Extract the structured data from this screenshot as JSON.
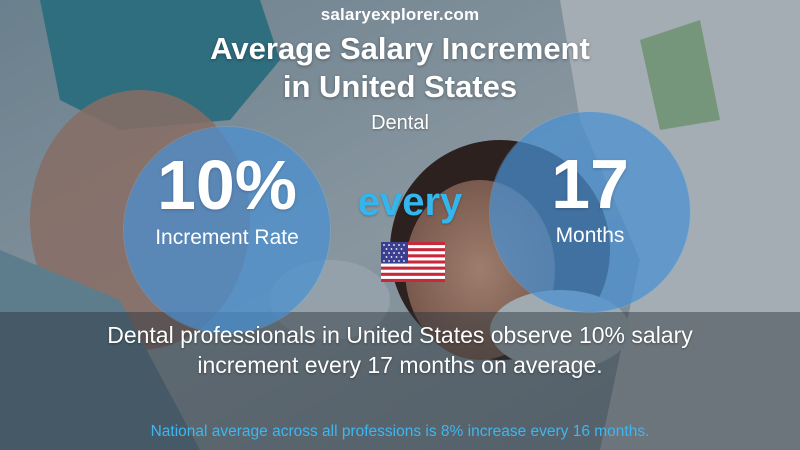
{
  "brand": {
    "part1": "salary",
    "part2": "explorer",
    "part3": ".com"
  },
  "title": {
    "line1": "Average Salary Increment",
    "line2": "in United States"
  },
  "subtitle": "Dental",
  "left_stat": {
    "value": "10%",
    "label": "Increment Rate"
  },
  "connector": "every",
  "right_stat": {
    "value": "17",
    "label": "Months"
  },
  "flag_icon": "us-flag-icon",
  "summary": {
    "line1": "Dental professionals in United States observe 10% salary",
    "line2": "increment every 17 months on average."
  },
  "national_average": "National average across all professions is 8% increase every 16 months.",
  "colors": {
    "circle": "#4a90d2",
    "accent": "#33b5ee",
    "text": "#ffffff"
  }
}
